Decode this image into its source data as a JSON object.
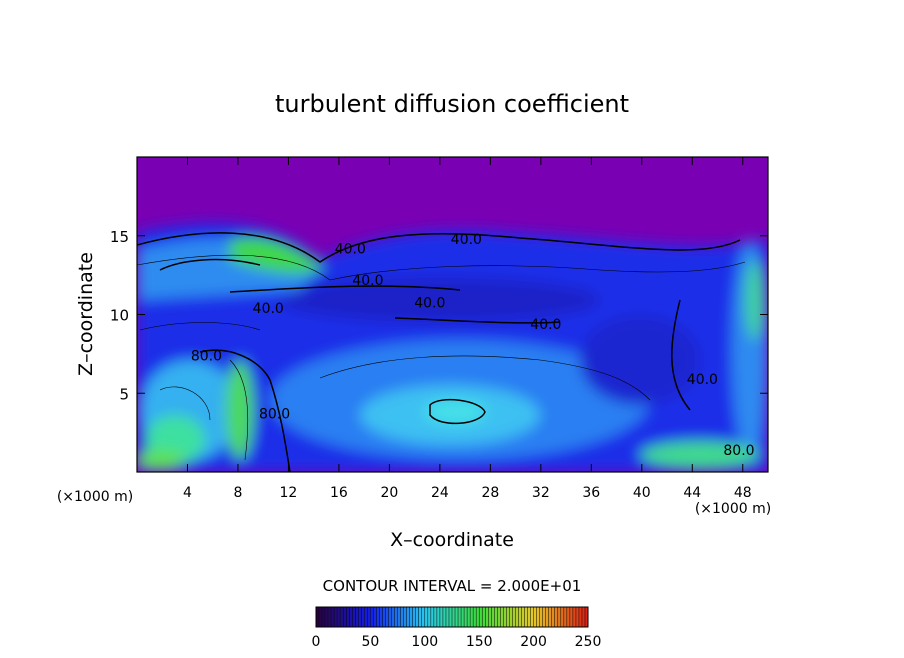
{
  "chart_data": {
    "type": "contour",
    "title": "turbulent diffusion coefficient",
    "xlabel": "X–coordinate",
    "ylabel": "Z–coordinate",
    "xunit": "(×1000 m)",
    "xlim": [
      0,
      50
    ],
    "xticks": [
      4,
      8,
      12,
      16,
      20,
      24,
      28,
      32,
      36,
      40,
      44,
      48
    ],
    "ylim": [
      0,
      20
    ],
    "yticks": [
      5,
      10,
      15
    ],
    "contour_interval_label": "CONTOUR INTERVAL = 2.000E+01",
    "contour_labels": [
      {
        "label": "40.0",
        "value": 40,
        "x": 26.1,
        "z": 14.8
      },
      {
        "label": "40.0",
        "value": 40,
        "x": 16.9,
        "z": 14.2
      },
      {
        "label": "40.0",
        "value": 40,
        "x": 18.3,
        "z": 12.2
      },
      {
        "label": "40.0",
        "value": 40,
        "x": 10.4,
        "z": 10.4
      },
      {
        "label": "40.0",
        "value": 40,
        "x": 23.2,
        "z": 10.75
      },
      {
        "label": "40.0",
        "value": 40,
        "x": 32.4,
        "z": 9.4
      },
      {
        "label": "80.0",
        "value": 80,
        "x": 5.5,
        "z": 7.4
      },
      {
        "label": "80.0",
        "value": 80,
        "x": 10.9,
        "z": 3.7
      },
      {
        "label": "80.0",
        "value": 80,
        "x": 47.7,
        "z": 1.4
      },
      {
        "label": "40.0",
        "value": 40,
        "x": 44.8,
        "z": 5.9
      }
    ],
    "clim": [
      0,
      250
    ],
    "colorbar_ticks": [
      0,
      50,
      100,
      150,
      200,
      250
    ]
  }
}
